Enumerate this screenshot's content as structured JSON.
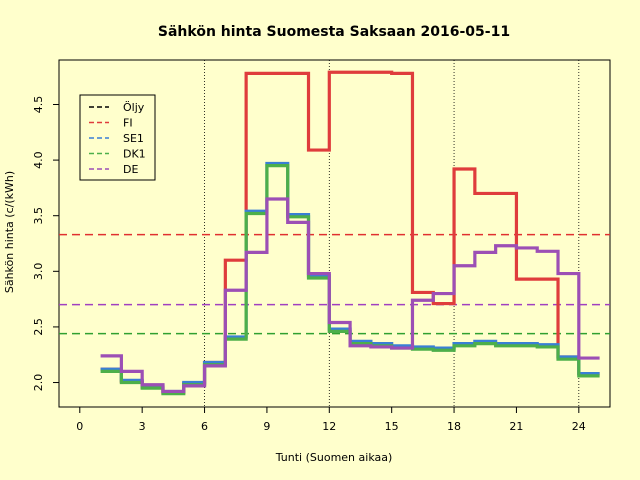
{
  "chart_data": {
    "type": "line",
    "title": "Sähkön hinta Suomesta Saksaan 2016-05-11",
    "xlabel": "Tunti (Suomen aikaa)",
    "ylabel": "Sähkön hinta (c/(kWh)",
    "xlim": [
      -1,
      25.5
    ],
    "ylim": [
      1.78,
      4.9
    ],
    "x_ticks": [
      0,
      3,
      6,
      9,
      12,
      15,
      18,
      21,
      24
    ],
    "y_ticks": [
      2.0,
      2.5,
      3.0,
      3.5,
      4.0,
      4.5
    ],
    "y_tick_labels": [
      "2.0",
      "2.5",
      "3.0",
      "3.5",
      "4.0",
      "4.5"
    ],
    "vertical_gridlines": [
      6,
      12,
      18,
      24
    ],
    "legend_position": "top-left",
    "hours": [
      1,
      2,
      3,
      4,
      5,
      6,
      7,
      8,
      9,
      10,
      11,
      12,
      13,
      14,
      15,
      16,
      17,
      18,
      19,
      20,
      21,
      22,
      23,
      24,
      25
    ],
    "series": [
      {
        "name": "Öljy",
        "color": "#000000",
        "style": "dashed",
        "values": []
      },
      {
        "name": "FI",
        "color": "#DF3C3C",
        "style": "step",
        "hline": 3.33,
        "hline_color": "#E03030",
        "values": [
          2.12,
          2.01,
          1.96,
          1.91,
          1.99,
          2.18,
          3.1,
          4.78,
          4.78,
          4.78,
          4.09,
          4.79,
          4.79,
          4.79,
          4.78,
          2.81,
          2.71,
          3.92,
          3.7,
          3.7,
          2.93,
          2.93,
          2.23,
          2.08,
          2.08
        ]
      },
      {
        "name": "SE1",
        "color": "#3A7FD5",
        "style": "step",
        "values": [
          2.12,
          2.02,
          1.97,
          1.92,
          2.0,
          2.18,
          2.41,
          3.54,
          3.97,
          3.51,
          2.96,
          2.48,
          2.37,
          2.35,
          2.33,
          2.32,
          2.31,
          2.35,
          2.37,
          2.35,
          2.35,
          2.34,
          2.23,
          2.08,
          2.08
        ]
      },
      {
        "name": "DK1",
        "color": "#4DAF4A",
        "style": "step",
        "hline": 2.44,
        "hline_color": "#30A030",
        "values": [
          2.1,
          2.0,
          1.95,
          1.9,
          1.98,
          2.16,
          2.39,
          3.52,
          3.95,
          3.49,
          2.94,
          2.46,
          2.35,
          2.33,
          2.31,
          2.3,
          2.29,
          2.33,
          2.35,
          2.33,
          2.33,
          2.32,
          2.21,
          2.06,
          2.06
        ]
      },
      {
        "name": "DE",
        "color": "#9C4FB5",
        "style": "step",
        "hline": 2.7,
        "hline_color": "#A040C0",
        "values": [
          2.24,
          2.1,
          1.98,
          1.92,
          1.97,
          2.15,
          2.83,
          3.17,
          3.65,
          3.44,
          2.98,
          2.54,
          2.33,
          2.32,
          2.31,
          2.74,
          2.8,
          3.05,
          3.17,
          3.23,
          3.21,
          3.18,
          2.98,
          2.22,
          2.22
        ]
      }
    ]
  }
}
